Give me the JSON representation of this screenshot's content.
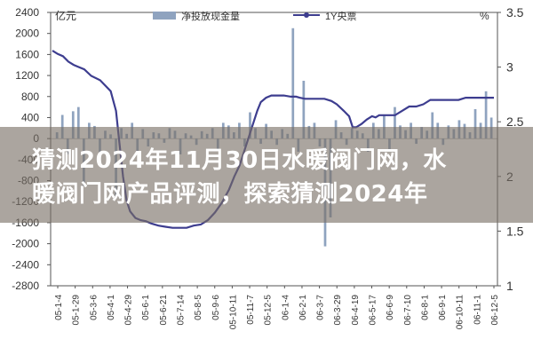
{
  "headline": {
    "line1": "猜测2024年11月30日水暖阀门网，水",
    "line2": "暖阀门网产品评测，探索猜测2024年"
  },
  "chart_data": {
    "type": "bar+line",
    "legend": [
      "净投放现金量",
      "1Y央票"
    ],
    "legend_placement": "top",
    "left_axis": {
      "unit": "亿元",
      "ticks": [
        "2400",
        "2000",
        "1600",
        "1200",
        "800",
        "400",
        "0",
        "-400",
        "-800",
        "-1200",
        "-1600",
        "-2000",
        "-2400",
        "-2800"
      ],
      "ylim": [
        -2800,
        2400
      ]
    },
    "right_axis": {
      "unit": "%",
      "ticks": [
        "3.5",
        "3",
        "2.5",
        "2",
        "1.5",
        "1"
      ],
      "ylim": [
        1,
        3.5
      ]
    },
    "x_tick_labels": [
      "05-1-4",
      "05-1-29",
      "05-3-6",
      "05-4-1",
      "05-4-29",
      "05-6-1",
      "05-6-21",
      "05-7-14",
      "05-8-5",
      "05-9-6",
      "05-10-11",
      "05-11-7",
      "05-12-5",
      "06-1-4",
      "06-2-1",
      "06-3-7",
      "06-3-29",
      "06-4-19",
      "06-5-17",
      "06-6-9",
      "06-7-10",
      "06-8-1",
      "06-9-1",
      "06-10-11",
      "06-11-1",
      "06-12-5"
    ],
    "series": [
      {
        "name": "净投放现金量",
        "kind": "bar",
        "color": "#8fa3bf",
        "values": [
          120,
          450,
          -300,
          520,
          600,
          -900,
          300,
          240,
          -400,
          150,
          80,
          -1100,
          200,
          90,
          300,
          -250,
          180,
          -150,
          120,
          100,
          -80,
          200,
          150,
          -300,
          100,
          60,
          -120,
          140,
          90,
          200,
          -200,
          300,
          250,
          120,
          300,
          -150,
          500,
          200,
          -100,
          280,
          150,
          -120,
          180,
          90,
          2100,
          -250,
          1100,
          240,
          300,
          -150,
          -2050,
          -1500,
          350,
          120,
          -120,
          200,
          150,
          100,
          -250,
          300,
          180,
          450,
          -200,
          600,
          250,
          160,
          300,
          -100,
          220,
          150,
          500,
          300,
          -120,
          250,
          180,
          350,
          280,
          120,
          560,
          300,
          900,
          400
        ]
      },
      {
        "name": "1Y央票",
        "kind": "line",
        "color": "#3d3d8f",
        "x": [
          0,
          3,
          6,
          9,
          12,
          15,
          18,
          22,
          27,
          33,
          36,
          38,
          40,
          42,
          44,
          47,
          50,
          53,
          56,
          60,
          64,
          68,
          72,
          76,
          80,
          84,
          88,
          92,
          96,
          100,
          103,
          106,
          108,
          110,
          113,
          116,
          118,
          121,
          124,
          127,
          131,
          135,
          138,
          140,
          143,
          146,
          150,
          154,
          158,
          161,
          165,
          168,
          170,
          172,
          175,
          178,
          181,
          183,
          185,
          188,
          191,
          194,
          198,
          202,
          206,
          210,
          214,
          218,
          222,
          226,
          230,
          234,
          238,
          242,
          246,
          250
        ],
        "values": [
          3.15,
          3.12,
          3.1,
          3.05,
          3.02,
          3.0,
          2.98,
          2.92,
          2.88,
          2.78,
          2.6,
          2.3,
          2.0,
          1.78,
          1.68,
          1.62,
          1.6,
          1.59,
          1.57,
          1.55,
          1.54,
          1.53,
          1.53,
          1.53,
          1.55,
          1.56,
          1.6,
          1.67,
          1.76,
          1.88,
          2.0,
          2.1,
          2.2,
          2.3,
          2.45,
          2.6,
          2.68,
          2.72,
          2.74,
          2.74,
          2.74,
          2.73,
          2.73,
          2.72,
          2.71,
          2.71,
          2.71,
          2.71,
          2.69,
          2.66,
          2.6,
          2.55,
          2.45,
          2.45,
          2.48,
          2.52,
          2.55,
          2.54,
          2.56,
          2.56,
          2.56,
          2.56,
          2.6,
          2.64,
          2.64,
          2.66,
          2.7,
          2.7,
          2.7,
          2.7,
          2.7,
          2.72,
          2.72,
          2.72,
          2.72,
          2.72
        ],
        "x_max": 250
      }
    ]
  }
}
